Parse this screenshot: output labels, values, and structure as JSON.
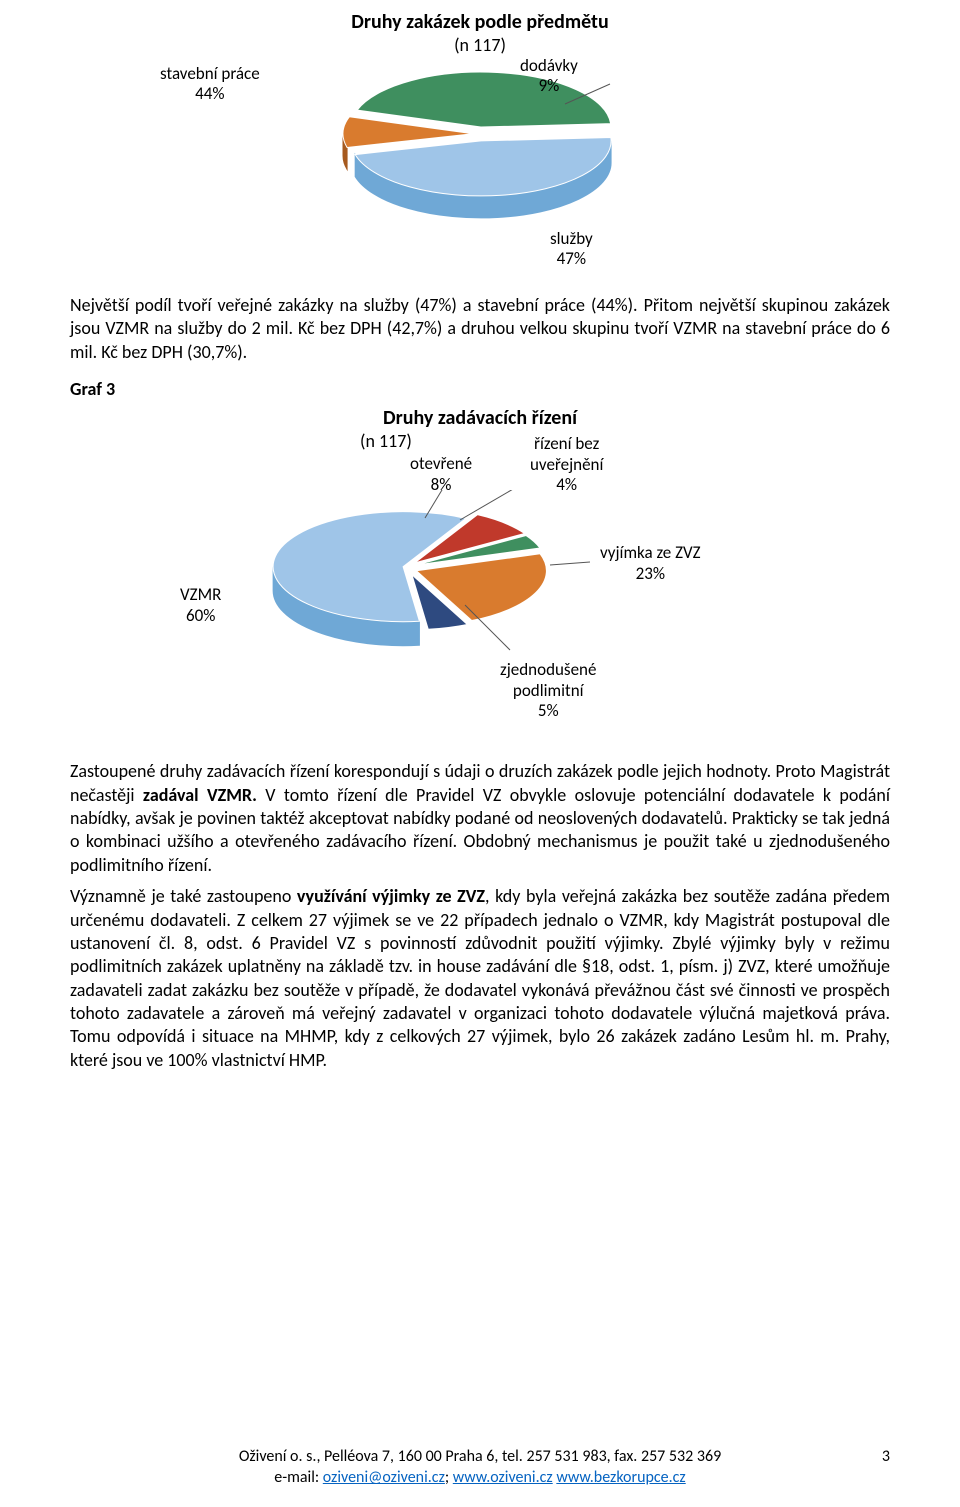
{
  "chart1": {
    "title": "Druhy zakázek podle předmětu",
    "subtitle": "(n 117)",
    "labels": {
      "stavebni": {
        "line1": "stavební práce",
        "line2": "44%"
      },
      "dodavky": {
        "line1": "dodávky",
        "line2": "9%"
      },
      "sluzby": {
        "line1": "služby",
        "line2": "47%"
      }
    },
    "slices": [
      {
        "name": "sluzby",
        "value": 47,
        "color_top": "#9fc5e8",
        "color_side": "#6fa8d6"
      },
      {
        "name": "dodavky",
        "value": 9,
        "color_top": "#d97b2e",
        "color_side": "#a65a1f"
      },
      {
        "name": "stavebni",
        "value": 44,
        "color_top": "#3f8f5f",
        "color_side": "#2d6a46"
      }
    ]
  },
  "para1": "Největší podíl tvoří veřejné zakázky na služby (47%) a stavební práce (44%). Přitom největší skupinou zakázek jsou VZMR na služby do 2 mil. Kč bez DPH (42,7%) a druhou velkou skupinu tvoří VZMR na stavební práce do 6 mil. Kč bez DPH (30,7%).",
  "graf3_heading": "Graf 3",
  "chart2": {
    "title": "Druhy zadávacích řízení",
    "subtitle": "(n 117)",
    "labels": {
      "otevrene": {
        "line1": "otevřené",
        "line2": "8%"
      },
      "rizeni_bez": {
        "line1": "řízení bez",
        "line2": "uveřejnění",
        "line3": "4%"
      },
      "vyjimka": {
        "line1": "vyjímka ze ZVZ",
        "line2": "23%"
      },
      "zjednod": {
        "line1": "zjednodušené",
        "line2": "podlimitní",
        "line3": "5%"
      },
      "vzmr": {
        "line1": "VZMR",
        "line2": "60%"
      }
    },
    "slices": [
      {
        "name": "vzmr",
        "value": 60,
        "color_top": "#9fc5e8",
        "color_side": "#6fa8d6"
      },
      {
        "name": "otevrene",
        "value": 8,
        "color_top": "#c0392b",
        "color_side": "#8a2820"
      },
      {
        "name": "rizeni_bez",
        "value": 4,
        "color_top": "#3f8f5f",
        "color_side": "#2d6a46"
      },
      {
        "name": "vyjimka",
        "value": 23,
        "color_top": "#d97b2e",
        "color_side": "#a65a1f"
      },
      {
        "name": "zjednod",
        "value": 5,
        "color_top": "#2e4a80",
        "color_side": "#1f3258"
      }
    ]
  },
  "para2_parts": {
    "a": "Zastoupené druhy zadávacích řízení korespondují s údaji o druzích zakázek podle jejich hodnoty. Proto Magistrát nečastěji ",
    "b": "zadával VZMR.",
    "c": " V tomto řízení dle Pravidel VZ obvykle oslovuje potenciální dodavatele k podání nabídky, avšak je povinen  taktéž akceptovat nabídky podané od neoslovených dodavatelů. Prakticky se tak jedná o kombinaci užšího a otevřeného zadávacího řízení. Obdobný mechanismus je použit také u zjednodušeného podlimitního řízení."
  },
  "para3_parts": {
    "a": "Významně je také zastoupeno ",
    "b": "využívání výjimky ze ZVZ",
    "c": ", kdy byla veřejná zakázka bez soutěže zadána předem určenému dodavateli.  Z celkem 27 výjimek se ve 22 případech jednalo o VZMR, kdy Magistrát postupoval dle ustanovení čl. 8, odst. 6 Pravidel VZ s povinností zdůvodnit použití výjimky. Zbylé výjimky byly v režimu podlimitních zakázek uplatněny na základě tzv.  in house zadávání dle §18, odst. 1, písm. j) ZVZ, které umožňuje zadavateli zadat zakázku bez soutěže v případě, že dodavatel vykonává převážnou část své činnosti ve prospěch tohoto zadavatele a zároveň má veřejný zadavatel v organizaci tohoto dodavatele výlučná majetková práva.  Tomu odpovídá i situace na MHMP, kdy z celkových 27 výjimek, bylo 26 zakázek zadáno Lesům hl. m. Prahy, které jsou ve 100% vlastnictví HMP."
  },
  "footer": {
    "line1": "Oživení o. s., Pelléova 7, 160 00 Praha 6, tel. 257 531 983, fax. 257 532 369",
    "email_prefix": "e-mail: ",
    "email": "oziveni@oziveni.cz",
    "sep": "; ",
    "url1": "www.oziveni.cz",
    "space": " ",
    "url2": "www.bezkorupce.cz",
    "page": "3"
  }
}
